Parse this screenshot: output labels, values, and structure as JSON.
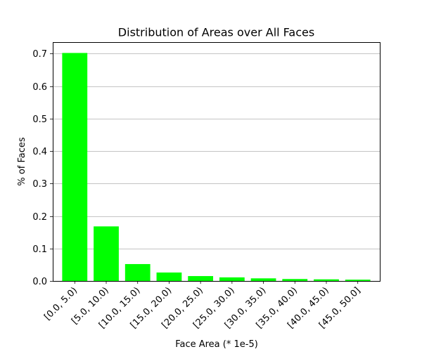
{
  "chart_data": {
    "type": "bar",
    "title": "Distribution of Areas over All Faces",
    "xlabel": "Face Area (* 1e-5)",
    "ylabel": "% of Faces",
    "categories": [
      "[0.0, 5.0)",
      "[5.0, 10.0)",
      "[10.0, 15.0)",
      "[15.0, 20.0)",
      "[20.0, 25.0)",
      "[25.0, 30.0)",
      "[30.0, 35.0)",
      "[35.0, 40.0)",
      "[40.0, 45.0)",
      "[45.0, 50.0]"
    ],
    "values": [
      0.702,
      0.168,
      0.052,
      0.026,
      0.015,
      0.011,
      0.008,
      0.006,
      0.005,
      0.004
    ],
    "ylim": [
      0,
      0.7353
    ],
    "yticks": [
      0.0,
      0.1,
      0.2,
      0.3,
      0.4,
      0.5,
      0.6,
      0.7
    ],
    "ytick_labels": [
      "0.0",
      "0.1",
      "0.2",
      "0.3",
      "0.4",
      "0.5",
      "0.6",
      "0.7"
    ],
    "grid": "horizontal",
    "bar_color": "#00ff00"
  }
}
